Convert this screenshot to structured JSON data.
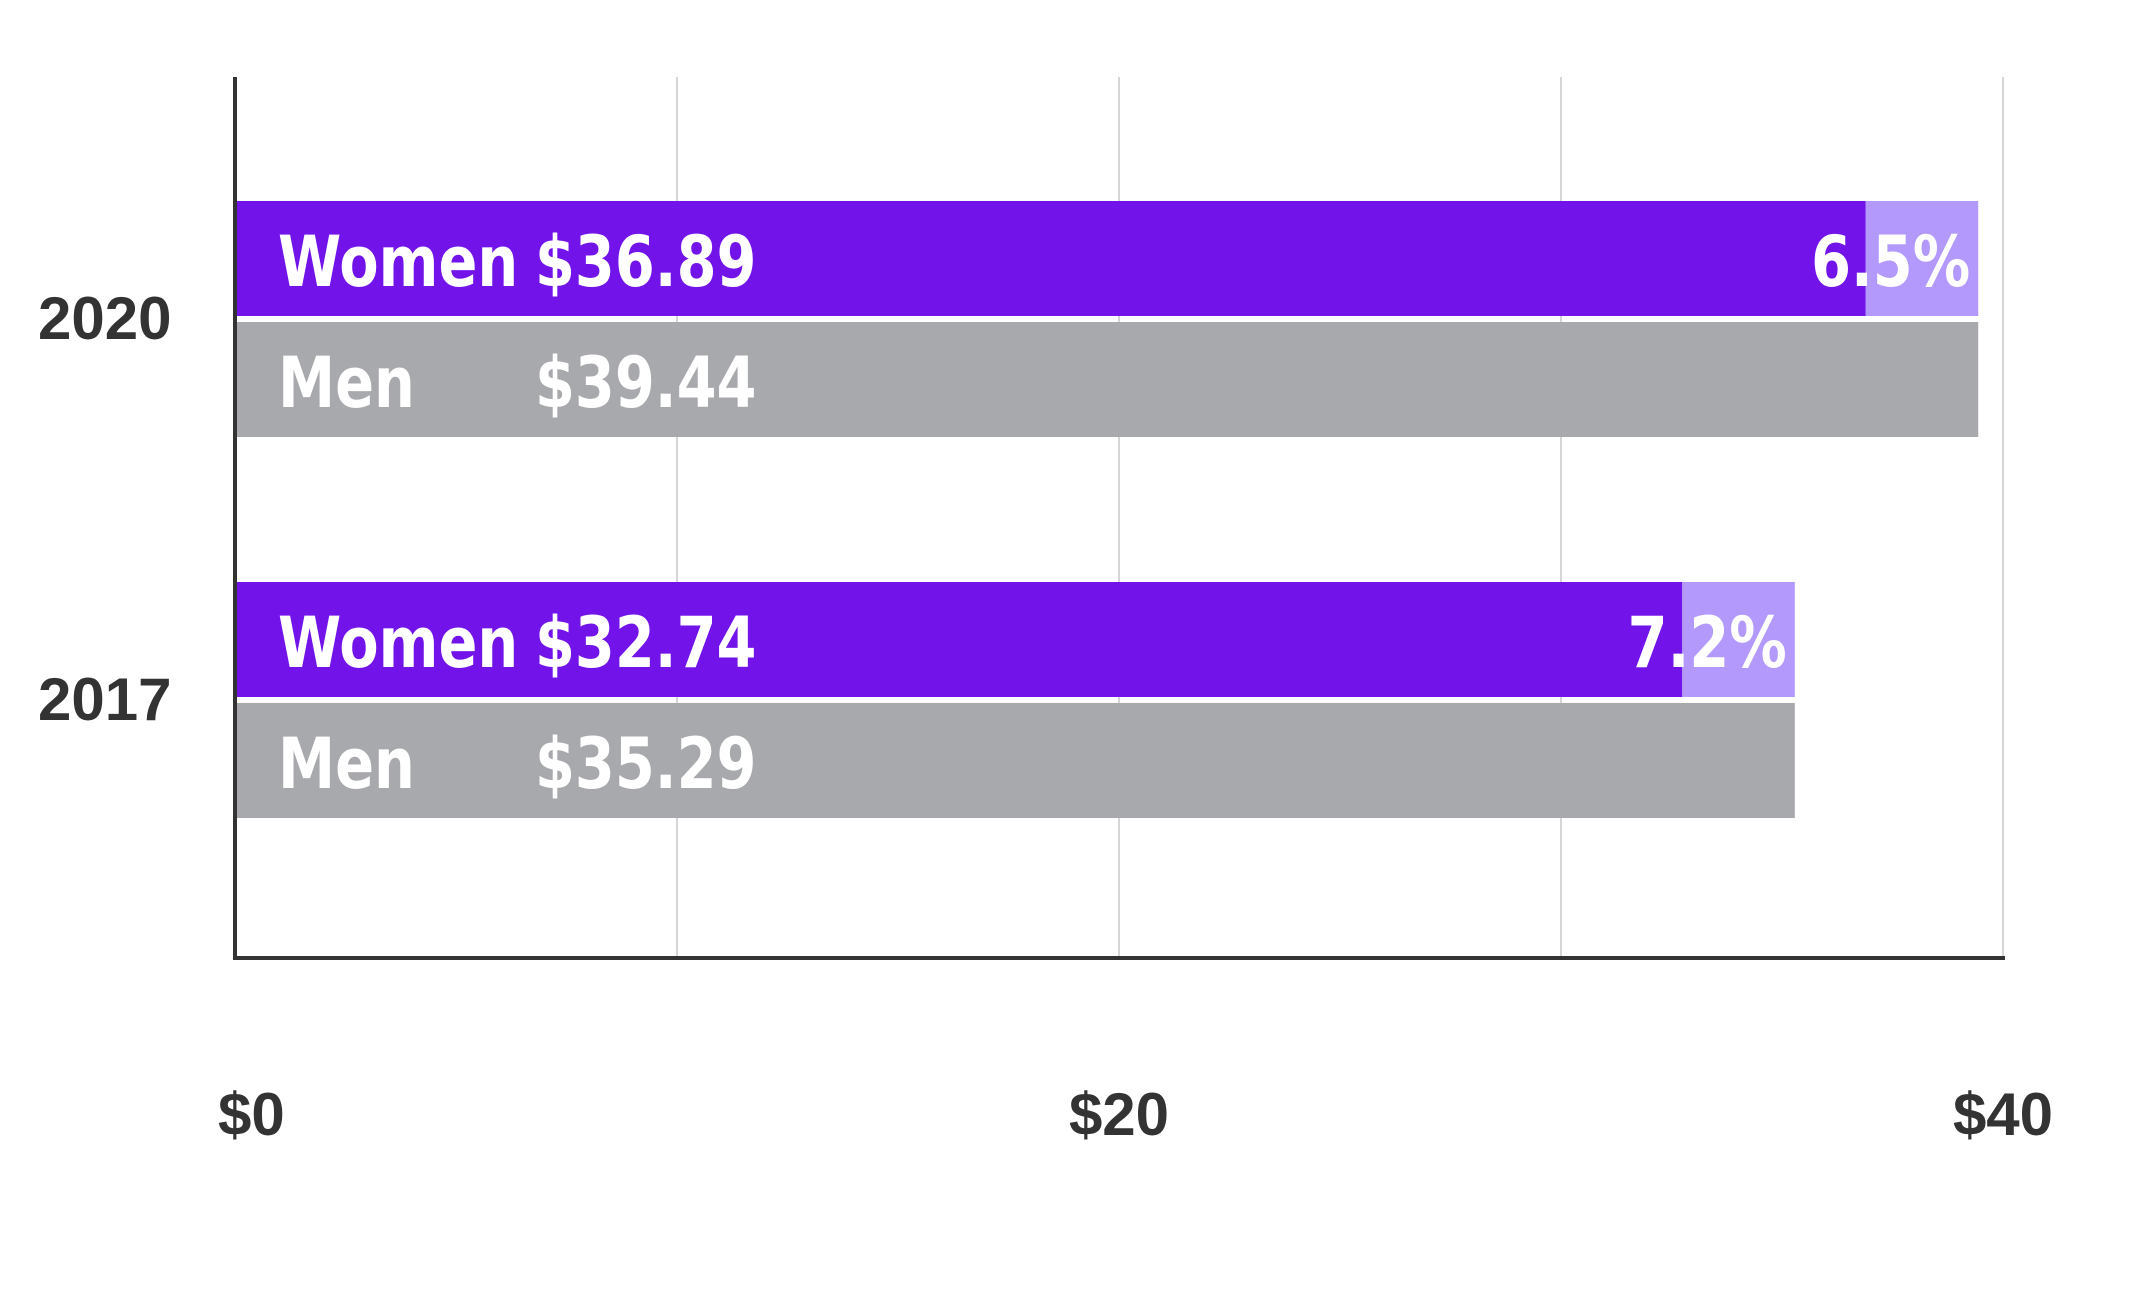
{
  "chart_data": {
    "type": "bar",
    "orientation": "horizontal",
    "categories": [
      "2020",
      "2017"
    ],
    "series": [
      {
        "name": "Women",
        "values": [
          36.89,
          32.74
        ],
        "labels": [
          "$36.89",
          "$32.74"
        ],
        "color": "#7213EA"
      },
      {
        "name": "Men",
        "values": [
          39.44,
          35.29
        ],
        "labels": [
          "$39.44",
          "$35.29"
        ],
        "color": "#A8A9AD"
      }
    ],
    "gap_labels": [
      "6.5%",
      "7.2%"
    ],
    "gap_color": "#B399FB",
    "xlim": [
      0,
      40
    ],
    "x_ticks": [
      0,
      20,
      40
    ],
    "x_tick_labels": [
      "$0",
      "$20",
      "$40"
    ],
    "gridlines_at": [
      10,
      20,
      30,
      40
    ],
    "grid": true,
    "legend": "none",
    "title": "",
    "xlabel": "",
    "ylabel": ""
  }
}
